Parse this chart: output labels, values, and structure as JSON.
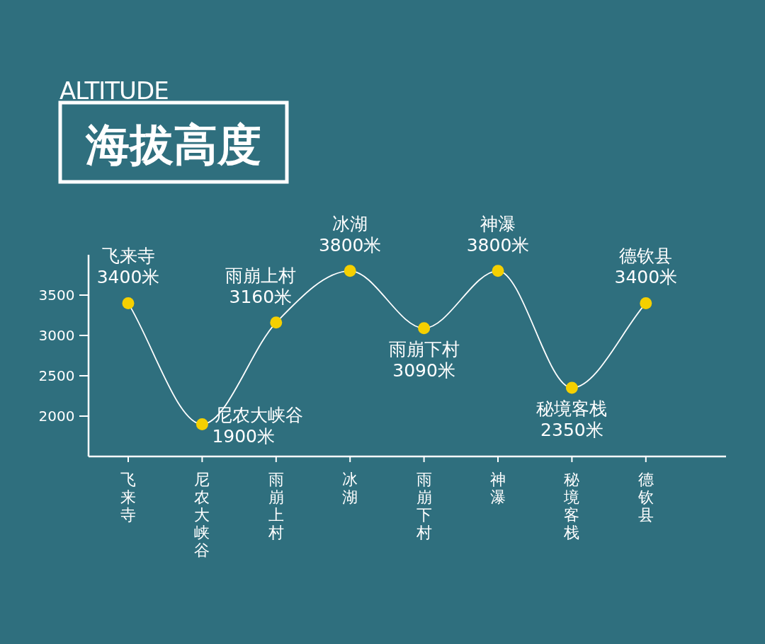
{
  "chart_data": {
    "type": "line",
    "subtitle": "ALTITUDE",
    "title": "海拔高度",
    "categories": [
      "飞来寺",
      "尼农大峡谷",
      "雨崩上村",
      "冰湖",
      "雨崩下村",
      "神瀑",
      "秘境客栈",
      "德钦县"
    ],
    "values": [
      3400,
      1900,
      3160,
      3800,
      3090,
      3800,
      2350,
      3400
    ],
    "value_labels": [
      "3400米",
      "1900米",
      "3160米",
      "3800米",
      "3090米",
      "3800米",
      "2350米",
      "3400米"
    ],
    "color": "#f5d000",
    "marker": "circle",
    "ylim": [
      1500,
      4000
    ],
    "yticks": [
      2000,
      2500,
      3000,
      3500
    ]
  }
}
